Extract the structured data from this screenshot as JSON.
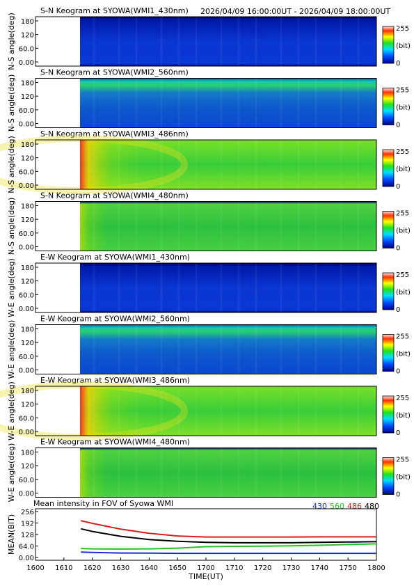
{
  "header": {
    "time_range": "2026/04/09 16:00:00UT - 2026/04/09 18:00:00UT"
  },
  "keogram_panels": [
    {
      "title": "S-N Keogram at SYOWA(WMI1_430nm)",
      "ylabel": "N-S angle(deg)",
      "style": "dim-blue"
    },
    {
      "title": "S-N Keogram at SYOWA(WMI2_560nm)",
      "ylabel": "N-S angle(deg)",
      "style": "blue-green-top"
    },
    {
      "title": "S-N Keogram at SYOWA(WMI3_486nm)",
      "ylabel": "N-S angle(deg)",
      "style": "twilight-green"
    },
    {
      "title": "S-N Keogram at SYOWA(WMI4_480nm)",
      "ylabel": "N-S angle(deg)",
      "style": "green"
    },
    {
      "title": "E-W Keogram at SYOWA(WMI1_430nm)",
      "ylabel": "W-E angle(deg)",
      "style": "dim-blue"
    },
    {
      "title": "E-W Keogram at SYOWA(WMI2_560nm)",
      "ylabel": "W-E angle(deg)",
      "style": "blue-green-top"
    },
    {
      "title": "E-W Keogram at SYOWA(WMI3_486nm)",
      "ylabel": "W-E angle(deg)",
      "style": "twilight-green"
    },
    {
      "title": "E-W Keogram at SYOWA(WMI4_480nm)",
      "ylabel": "W-E angle(deg)",
      "style": "green"
    }
  ],
  "keogram_yticks": [
    "0.00",
    "60.0",
    "120",
    "180"
  ],
  "colorbar": {
    "max_label": "255",
    "unit_label": "(bit)",
    "min_label": "0"
  },
  "chart_data": {
    "type": "line",
    "title": "Mean intensity in FOV of Syowa WMI",
    "xlabel": "TIME(UT)",
    "ylabel": "MEAN(BIT)",
    "xlim": [
      1600,
      1800
    ],
    "ylim": [
      0,
      256
    ],
    "x_ticks": [
      "1600",
      "1610",
      "1620",
      "1630",
      "1640",
      "1650",
      "1700",
      "1710",
      "1720",
      "1730",
      "1740",
      "1750",
      "1800"
    ],
    "y_ticks": [
      "0.00",
      "64.0",
      "128",
      "192",
      "256"
    ],
    "x": [
      1616,
      1620,
      1630,
      1640,
      1650,
      1700,
      1710,
      1720,
      1730,
      1740,
      1750,
      1800
    ],
    "series": [
      {
        "name": "430",
        "color": "#1a2bd8",
        "values": [
          30,
          28,
          25,
          24,
          23,
          23,
          23,
          23,
          23,
          23,
          23,
          23
        ]
      },
      {
        "name": "560",
        "color": "#22c422",
        "values": [
          50,
          48,
          47,
          48,
          52,
          60,
          62,
          63,
          65,
          68,
          72,
          76
        ]
      },
      {
        "name": "486",
        "color": "#d81c1c",
        "values": [
          205,
          190,
          158,
          135,
          120,
          114,
          114,
          114,
          114,
          115,
          115,
          115
        ]
      },
      {
        "name": "480",
        "color": "#000000",
        "values": [
          160,
          145,
          118,
          100,
          90,
          84,
          82,
          82,
          82,
          84,
          86,
          88
        ]
      }
    ]
  }
}
